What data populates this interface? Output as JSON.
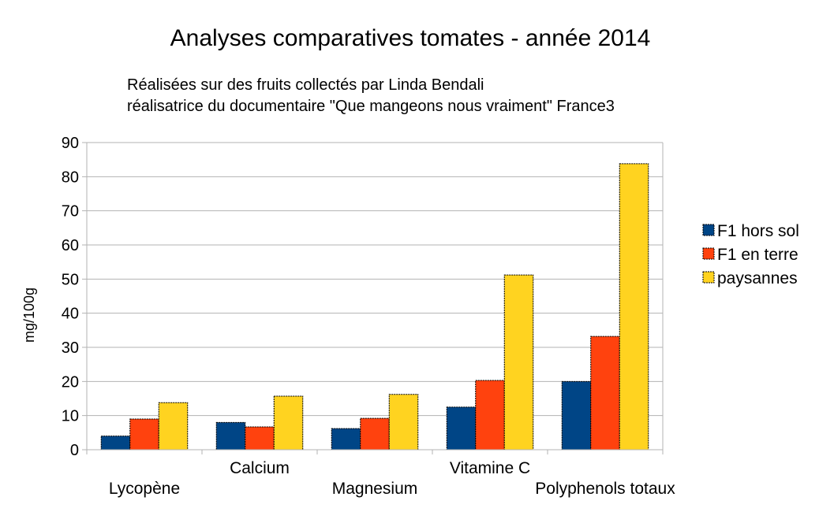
{
  "chart_data": {
    "type": "bar",
    "title": "Analyses comparatives tomates - année 2014",
    "subtitle": [
      "Réalisées sur des fruits collectés par Linda Bendali",
      "réalisatrice du documentaire \"Que mangeons nous vraiment\" France3"
    ],
    "xlabel": "",
    "ylabel": "mg/100g",
    "ylim": [
      0,
      90
    ],
    "yticks": [
      0,
      10,
      20,
      30,
      40,
      50,
      60,
      70,
      80,
      90
    ],
    "grid": true,
    "legend_position": "right",
    "categories": [
      "Lycopène",
      "Calcium",
      "Magnesium",
      "Vitamine C",
      "Polyphenols totaux"
    ],
    "series": [
      {
        "name": "F1 hors sol",
        "color": "#004586",
        "values": [
          4,
          8,
          6.2,
          12.5,
          20
        ]
      },
      {
        "name": "F1 en terre",
        "color": "#ff420e",
        "values": [
          9,
          6.7,
          9.2,
          20.3,
          33.2
        ]
      },
      {
        "name": "paysannes",
        "color": "#ffd320",
        "values": [
          13.8,
          15.7,
          16.2,
          51.2,
          83.8
        ]
      }
    ]
  }
}
